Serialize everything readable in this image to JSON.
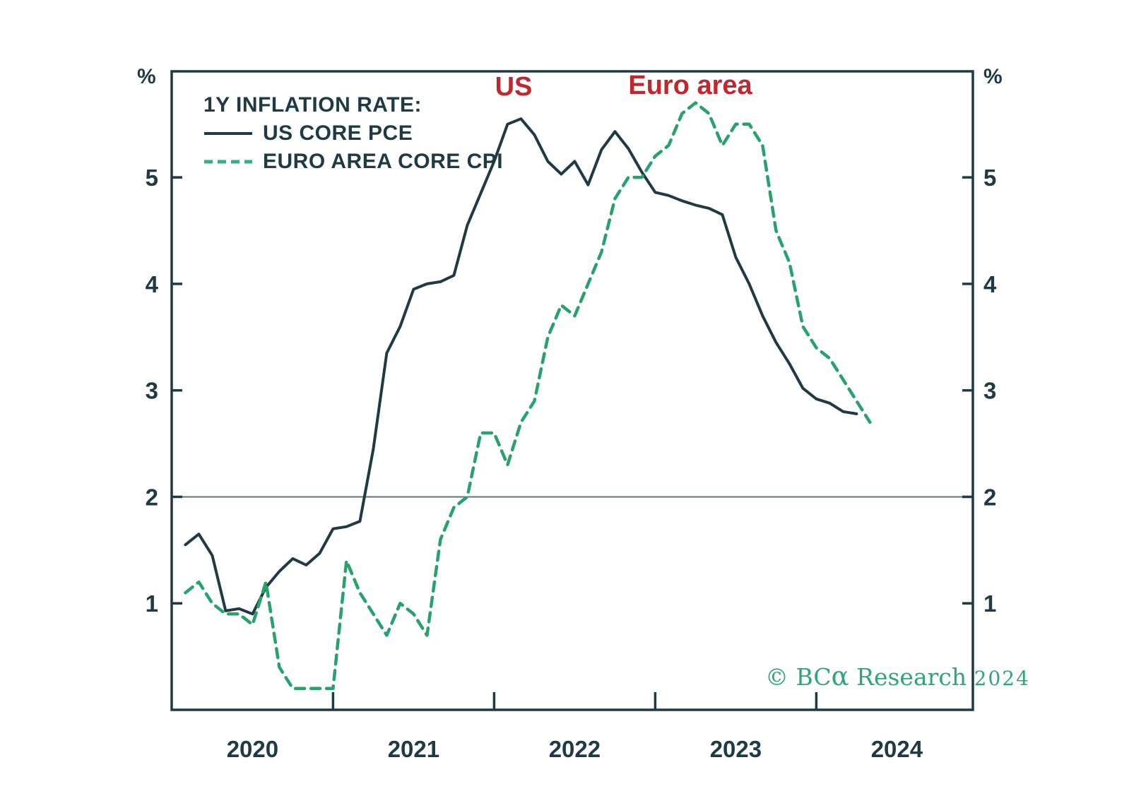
{
  "chart_data": {
    "type": "line",
    "title": "1Y INFLATION RATE:",
    "y_axis": {
      "unit": "%",
      "min": 0,
      "max": 6,
      "ticks": [
        1,
        2,
        3,
        4,
        5
      ],
      "grid": false
    },
    "x_axis": {
      "year_labels": [
        "2020",
        "2021",
        "2022",
        "2023",
        "2024"
      ],
      "start": "2020-01",
      "frequency": "monthly"
    },
    "reference_line": {
      "value": 2
    },
    "legend_position": "top-left",
    "series": [
      {
        "name": "US CORE PCE",
        "style": "solid",
        "color": "#1e3a44",
        "start": "2020-01",
        "end": "2024-03",
        "values": [
          1.55,
          1.65,
          1.45,
          0.93,
          0.95,
          0.9,
          1.15,
          1.3,
          1.42,
          1.36,
          1.47,
          1.7,
          1.72,
          1.77,
          2.45,
          3.35,
          3.6,
          3.95,
          4.0,
          4.02,
          4.08,
          4.55,
          4.85,
          5.15,
          5.5,
          5.55,
          5.4,
          5.15,
          5.03,
          5.15,
          4.93,
          5.26,
          5.43,
          5.27,
          5.05,
          4.86,
          4.83,
          4.78,
          4.74,
          4.71,
          4.65,
          4.25,
          4.0,
          3.7,
          3.45,
          3.25,
          3.02,
          2.92,
          2.88,
          2.8,
          2.78
        ]
      },
      {
        "name": "EURO AREA CORE CPI",
        "style": "dashed",
        "color": "#28a26c",
        "start": "2020-01",
        "end": "2024-04",
        "values": [
          1.1,
          1.2,
          1.0,
          0.9,
          0.9,
          0.8,
          1.2,
          0.4,
          0.2,
          0.2,
          0.2,
          0.2,
          1.4,
          1.1,
          0.9,
          0.7,
          1.0,
          0.9,
          0.7,
          1.6,
          1.9,
          2.0,
          2.6,
          2.6,
          2.3,
          2.7,
          2.9,
          3.5,
          3.8,
          3.7,
          4.0,
          4.3,
          4.8,
          5.0,
          5.0,
          5.2,
          5.3,
          5.6,
          5.7,
          5.6,
          5.3,
          5.5,
          5.5,
          5.3,
          4.5,
          4.2,
          3.6,
          3.4,
          3.3,
          3.1,
          2.9,
          2.7
        ]
      }
    ],
    "annotations": [
      {
        "text": "US",
        "color": "#c2272e"
      },
      {
        "text": "Euro area",
        "color": "#c2272e"
      }
    ]
  },
  "watermark": {
    "copyright": "© ",
    "brand": "BC",
    "alpha": "α",
    "name": " Research ",
    "year": "2024"
  }
}
